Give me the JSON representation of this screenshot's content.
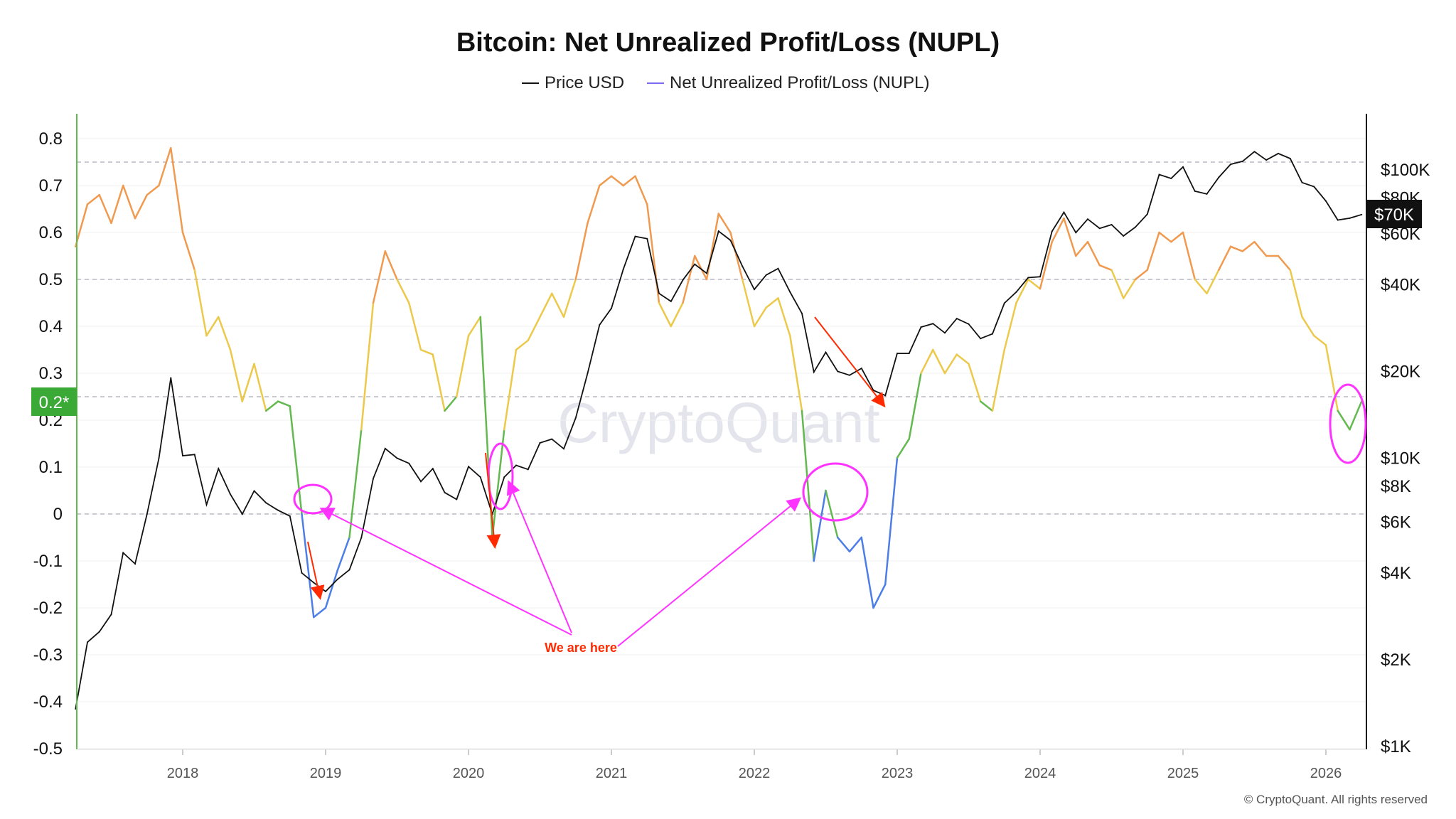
{
  "chart_data": {
    "type": "line",
    "title": "Bitcoin: Net Unrealized Profit/Loss (NUPL)",
    "legend": {
      "placement": "top-center",
      "entries": [
        "Price USD",
        "Net Unrealized Profit/Loss (NUPL)"
      ]
    },
    "x_ticks": [
      "2018",
      "2019",
      "2020",
      "2021",
      "2022",
      "2023",
      "2024",
      "2025",
      "2026"
    ],
    "y_left": {
      "ticks": [
        "0.8",
        "0.7",
        "0.6",
        "0.5",
        "0.4",
        "0.3",
        "0.2",
        "0.1",
        "0",
        "-0.1",
        "-0.2",
        "-0.3",
        "-0.4",
        "-0.5"
      ],
      "range": [
        -0.5,
        0.8
      ],
      "reference_lines": [
        0.75,
        0.5,
        0.25,
        0
      ]
    },
    "y_right": {
      "scale": "log",
      "ticks": [
        "$1K",
        "$2K",
        "$4K",
        "$6K",
        "$8K",
        "$10K",
        "$20K",
        "$40K",
        "$60K",
        "$80K",
        "$100K"
      ],
      "tick_values": [
        1000,
        2000,
        4000,
        6000,
        8000,
        10000,
        20000,
        40000,
        60000,
        80000,
        100000
      ],
      "range": [
        1000,
        160000
      ]
    },
    "current_nupl_label": "0.2*",
    "current_price_label": "$70K",
    "zone_colors": {
      "capitulation": "#4d7ee8",
      "hope_fear": "#63b84f",
      "optimism": "#ecc94b",
      "belief": "#f09a50",
      "euphoria": "#e96a6a"
    },
    "price_color": "#111111",
    "dates": [
      "2017-04",
      "2017-05",
      "2017-06",
      "2017-07",
      "2017-08",
      "2017-09",
      "2017-10",
      "2017-11",
      "2017-12",
      "2018-01",
      "2018-02",
      "2018-03",
      "2018-04",
      "2018-05",
      "2018-06",
      "2018-07",
      "2018-08",
      "2018-09",
      "2018-10",
      "2018-11",
      "2018-12",
      "2019-01",
      "2019-02",
      "2019-03",
      "2019-04",
      "2019-05",
      "2019-06",
      "2019-07",
      "2019-08",
      "2019-09",
      "2019-10",
      "2019-11",
      "2019-12",
      "2020-01",
      "2020-02",
      "2020-03",
      "2020-04",
      "2020-05",
      "2020-06",
      "2020-07",
      "2020-08",
      "2020-09",
      "2020-10",
      "2020-11",
      "2020-12",
      "2021-01",
      "2021-02",
      "2021-03",
      "2021-04",
      "2021-05",
      "2021-06",
      "2021-07",
      "2021-08",
      "2021-09",
      "2021-10",
      "2021-11",
      "2021-12",
      "2022-01",
      "2022-02",
      "2022-03",
      "2022-04",
      "2022-05",
      "2022-06",
      "2022-07",
      "2022-08",
      "2022-09",
      "2022-10",
      "2022-11",
      "2022-12",
      "2023-01",
      "2023-02",
      "2023-03",
      "2023-04",
      "2023-05",
      "2023-06",
      "2023-07",
      "2023-08",
      "2023-09",
      "2023-10",
      "2023-11",
      "2023-12",
      "2024-01",
      "2024-02",
      "2024-03",
      "2024-04",
      "2024-05",
      "2024-06",
      "2024-07",
      "2024-08",
      "2024-09",
      "2024-10",
      "2024-11",
      "2024-12",
      "2025-01",
      "2025-02",
      "2025-03",
      "2025-04",
      "2025-05",
      "2025-06",
      "2025-07",
      "2025-08",
      "2025-09",
      "2025-10",
      "2025-11",
      "2025-12",
      "2026-01",
      "2026-02",
      "2026-03",
      "2026-04"
    ],
    "series": [
      {
        "name": "Price USD",
        "axis": "right",
        "values": [
          1350,
          2300,
          2500,
          2870,
          4700,
          4300,
          6400,
          10000,
          19000,
          10200,
          10300,
          6900,
          9200,
          7500,
          6400,
          7700,
          7000,
          6600,
          6300,
          4000,
          3700,
          3450,
          3800,
          4100,
          5300,
          8500,
          10800,
          10000,
          9600,
          8300,
          9200,
          7600,
          7200,
          9350,
          8600,
          6400,
          8600,
          9450,
          9140,
          11300,
          11650,
          10780,
          13800,
          19700,
          29000,
          33100,
          45200,
          58800,
          57700,
          37300,
          35000,
          41500,
          47100,
          43800,
          61300,
          57000,
          46300,
          38500,
          43200,
          45500,
          37700,
          31800,
          19900,
          23300,
          20000,
          19400,
          20500,
          17200,
          16500,
          23100,
          23100,
          28500,
          29300,
          27200,
          30500,
          29200,
          26000,
          27000,
          34500,
          37700,
          42300,
          42600,
          61200,
          71300,
          60600,
          67500,
          62700,
          64600,
          59000,
          63300,
          70200,
          96400,
          93400,
          102400,
          84400,
          82500,
          94200,
          104600,
          107100,
          115700,
          108200,
          114000,
          109500,
          90400,
          87500,
          78000,
          67000,
          68000,
          70000
        ]
      },
      {
        "name": "Net Unrealized Profit/Loss (NUPL)",
        "axis": "left",
        "values": [
          0.57,
          0.66,
          0.68,
          0.62,
          0.7,
          0.63,
          0.68,
          0.7,
          0.78,
          0.6,
          0.52,
          0.38,
          0.42,
          0.35,
          0.24,
          0.32,
          0.22,
          0.24,
          0.23,
          0.0,
          -0.22,
          -0.2,
          -0.12,
          -0.05,
          0.18,
          0.45,
          0.56,
          0.5,
          0.45,
          0.35,
          0.34,
          0.22,
          0.25,
          0.38,
          0.42,
          -0.05,
          0.18,
          0.35,
          0.37,
          0.42,
          0.47,
          0.42,
          0.5,
          0.62,
          0.7,
          0.72,
          0.7,
          0.72,
          0.66,
          0.45,
          0.4,
          0.45,
          0.55,
          0.5,
          0.64,
          0.6,
          0.5,
          0.4,
          0.44,
          0.46,
          0.38,
          0.22,
          -0.1,
          0.05,
          -0.05,
          -0.08,
          -0.05,
          -0.2,
          -0.15,
          0.12,
          0.16,
          0.3,
          0.35,
          0.3,
          0.34,
          0.32,
          0.24,
          0.22,
          0.35,
          0.45,
          0.5,
          0.48,
          0.58,
          0.63,
          0.55,
          0.58,
          0.53,
          0.52,
          0.46,
          0.5,
          0.52,
          0.6,
          0.58,
          0.6,
          0.5,
          0.47,
          0.52,
          0.57,
          0.56,
          0.58,
          0.55,
          0.55,
          0.52,
          0.42,
          0.38,
          0.36,
          0.22,
          0.18,
          0.24
        ]
      }
    ],
    "annotations": {
      "text": "We are here",
      "text_color": "#ff2a00",
      "circle_color": "#ff33ff",
      "arrow_color": "#ff2a00"
    }
  },
  "watermark": "CryptoQuant",
  "copyright": "© CryptoQuant. All rights reserved"
}
